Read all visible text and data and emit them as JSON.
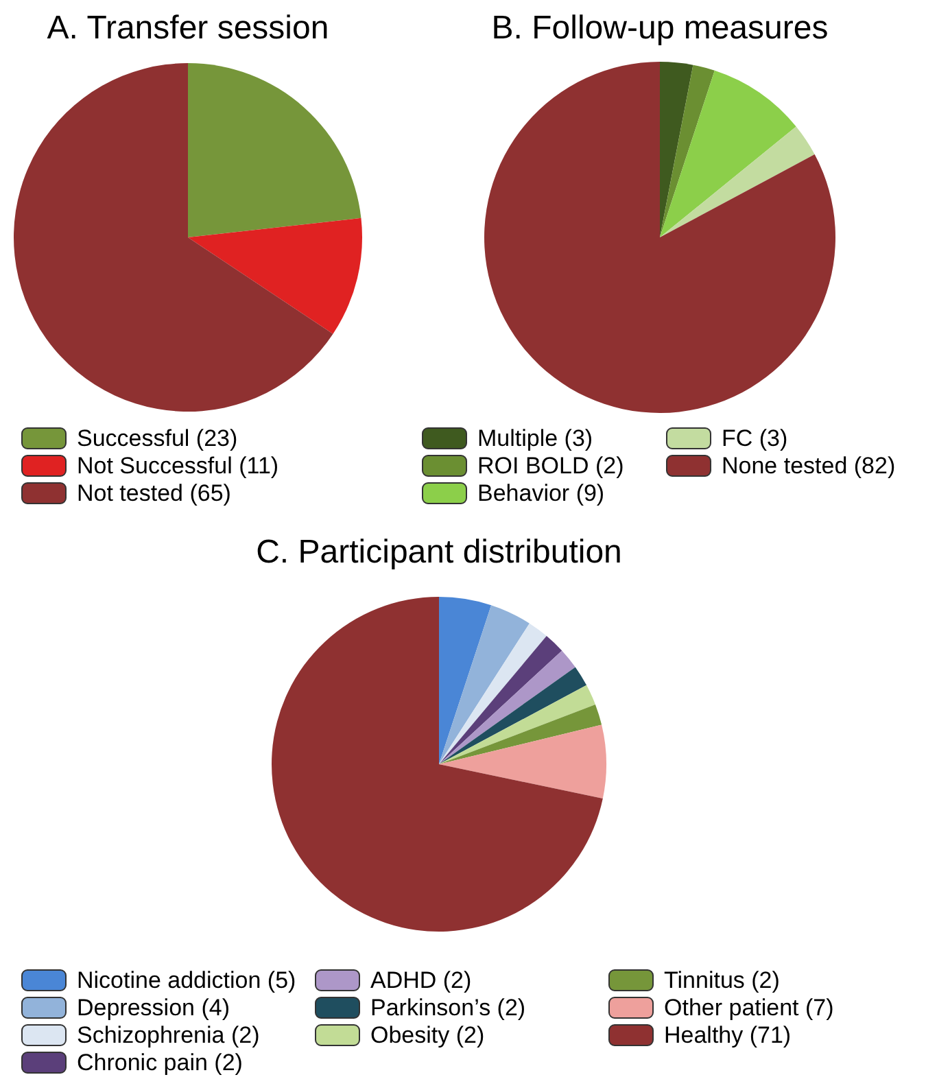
{
  "chart_data": [
    {
      "type": "pie",
      "title": "A. Transfer session",
      "categories": [
        "Successful (23)",
        "Not Successful (11)",
        "Not tested (65)"
      ],
      "values": [
        23,
        11,
        65
      ],
      "colors": [
        "#76963a",
        "#e02222",
        "#8f3131"
      ],
      "legend": "bottom"
    },
    {
      "type": "pie",
      "title": "B. Follow-up measures",
      "categories": [
        "Multiple (3)",
        "ROI BOLD (2)",
        "Behavior (9)",
        "FC (3)",
        "None tested (82)"
      ],
      "values": [
        3,
        2,
        9,
        3,
        82
      ],
      "colors": [
        "#3f5a1f",
        "#6b8f32",
        "#8ccf4a",
        "#c3dca0",
        "#8f3131"
      ],
      "legend": "bottom"
    },
    {
      "type": "pie",
      "title": "C. Participant distribution",
      "categories": [
        "Nicotine addiction (5)",
        "Depression (4)",
        "Schizophrenia (2)",
        "Chronic pain (2)",
        "ADHD (2)",
        "Parkinson’s (2)",
        "Obesity (2)",
        "Tinnitus (2)",
        "Other patient (7)",
        "Healthy (71)"
      ],
      "values": [
        5,
        4,
        2,
        2,
        2,
        2,
        2,
        2,
        7,
        71
      ],
      "colors": [
        "#4a86d6",
        "#92b3da",
        "#dce6f2",
        "#5b3f7a",
        "#ad97c8",
        "#1f4e5f",
        "#c2dc96",
        "#76963a",
        "#eea09c",
        "#8f3131"
      ],
      "legend": "bottom"
    }
  ]
}
